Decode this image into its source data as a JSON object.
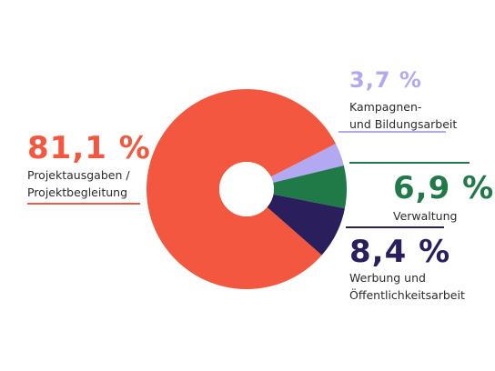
{
  "chart_data": {
    "type": "pie",
    "variant": "donut",
    "legend": "labels beside slices with colored underline rules",
    "slices": [
      {
        "label_pct": "81,1 %",
        "label_lines": [
          "Projektausgaben /",
          "Projektbegleitung"
        ],
        "value": 81.1,
        "color": "#F4573F"
      },
      {
        "label_pct": "3,7 %",
        "label_lines": [
          "Kampagnen-",
          "und Bildungsarbeit"
        ],
        "value": 3.7,
        "color": "#B3A9F2"
      },
      {
        "label_pct": "6,9 %",
        "label_lines": [
          "Verwaltung"
        ],
        "value": 6.9,
        "color": "#1F7A48"
      },
      {
        "label_pct": "8,4 %",
        "label_lines": [
          "Werbung und",
          "Öffentlichkeitsarbeit"
        ],
        "value": 8.4,
        "color": "#2A1E5C"
      }
    ],
    "hole_color": "#FFFFFF"
  }
}
